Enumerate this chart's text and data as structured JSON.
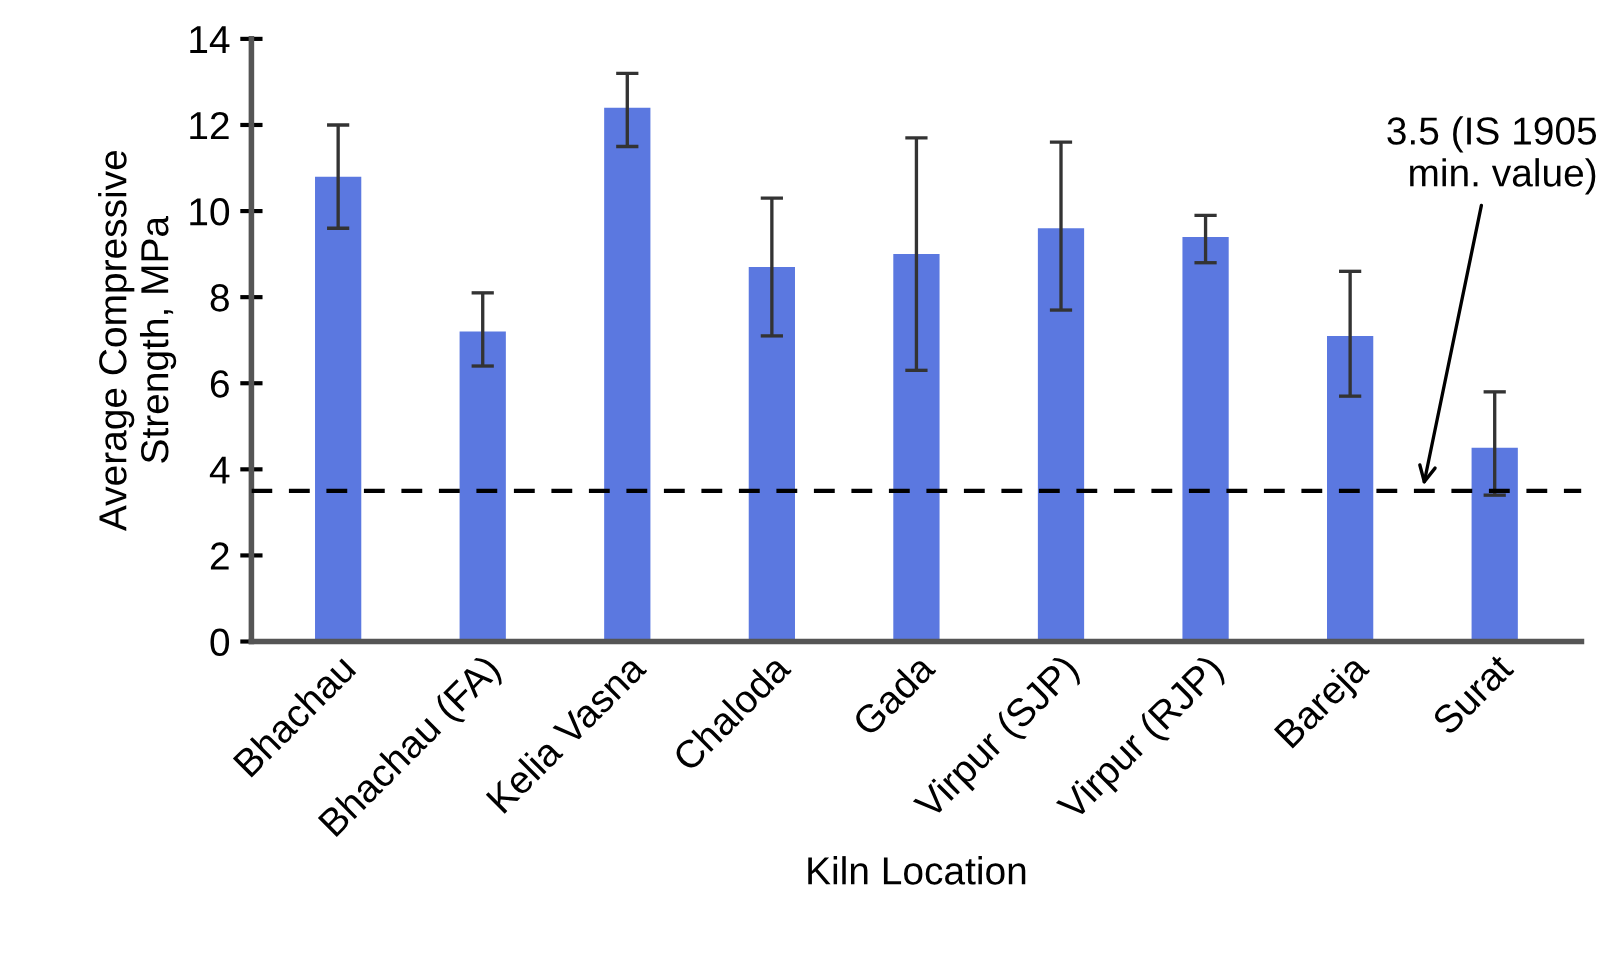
{
  "chart_data": {
    "type": "bar",
    "xlabel": "Kiln Location",
    "ylabel": "Average Compressive\nStrength, MPa",
    "categories": [
      "Bhachau",
      "Bhachau (FA)",
      "Kelia Vasna",
      "Chaloda",
      "Gada",
      "Virpur (SJP)",
      "Virpur (RJP)",
      "Bareja",
      "Surat"
    ],
    "values": [
      10.8,
      7.2,
      12.4,
      8.7,
      9.0,
      9.6,
      9.4,
      7.1,
      4.5
    ],
    "errors": [
      [
        9.6,
        12.0
      ],
      [
        6.4,
        8.1
      ],
      [
        11.5,
        13.2
      ],
      [
        7.1,
        10.3
      ],
      [
        6.3,
        11.7
      ],
      [
        7.7,
        11.6
      ],
      [
        8.8,
        9.9
      ],
      [
        5.7,
        8.6
      ],
      [
        3.4,
        5.8
      ]
    ],
    "color": "#5b78e0",
    "ylim": [
      0,
      14
    ],
    "yticks": [
      0,
      2,
      4,
      6,
      8,
      10,
      12,
      14
    ],
    "grid": false,
    "ref_lines": [
      {
        "axis": "y",
        "value": 3.5,
        "label": "3.5 (IS 1905\nmin. value)",
        "color": "#000000",
        "line_style": "dashed"
      }
    ]
  }
}
